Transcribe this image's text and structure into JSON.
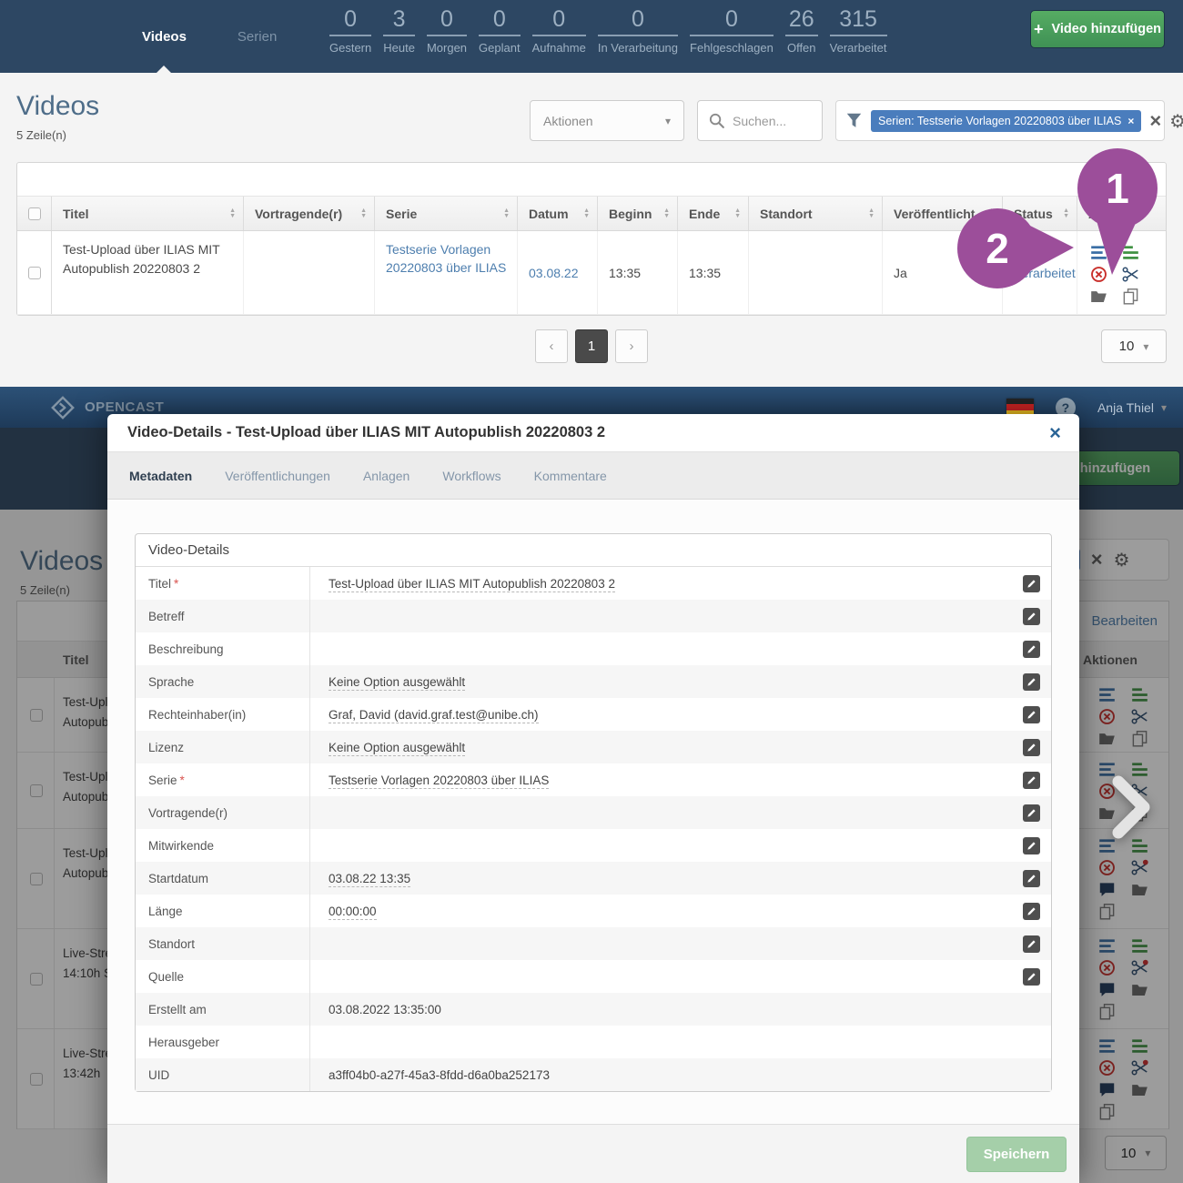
{
  "colors": {
    "navy_header": "#2d4763",
    "accent_blue_chip": "#4a7dbd",
    "link_blue": "#4d7eae",
    "add_button_green": "#4ba05e",
    "save_button_green": "#a5cfa9",
    "annotation_purple": "#9c4e9a",
    "delete_red": "#c9302c"
  },
  "glyphs": {
    "plus": "+",
    "close": "×",
    "gear": "⚙",
    "chevron_down": "▾",
    "prev": "‹",
    "next": "›",
    "help": "?",
    "tri_up": "▲",
    "tri_down": "▼"
  },
  "shot1": {
    "nav_tabs": [
      {
        "label": "Videos",
        "active": true
      },
      {
        "label": "Serien",
        "active": false
      }
    ],
    "stats": [
      {
        "value": "0",
        "label": "Gestern"
      },
      {
        "value": "3",
        "label": "Heute"
      },
      {
        "value": "0",
        "label": "Morgen"
      },
      {
        "value": "0",
        "label": "Geplant"
      },
      {
        "value": "0",
        "label": "Aufnahme"
      },
      {
        "value": "0",
        "label": "In Verarbeitung"
      },
      {
        "value": "0",
        "label": "Fehlgeschlagen"
      },
      {
        "value": "26",
        "label": "Offen"
      },
      {
        "value": "315",
        "label": "Verarbeitet"
      }
    ],
    "add_video_button": "Video hinzufügen",
    "page_title": "Videos",
    "row_count": "5 Zeile(n)",
    "actions_select": "Aktionen",
    "search_placeholder": "Suchen...",
    "filter_chip": "Serien: Testserie Vorlagen 20220803 über ILIAS",
    "table": {
      "columns": [
        {
          "label": "Titel",
          "sortable": true
        },
        {
          "label": "Vortragende(r)",
          "sortable": true
        },
        {
          "label": "Serie",
          "sortable": true
        },
        {
          "label": "Datum",
          "sortable": true
        },
        {
          "label": "Beginn",
          "sortable": true
        },
        {
          "label": "Ende",
          "sortable": true
        },
        {
          "label": "Standort",
          "sortable": true
        },
        {
          "label": "Veröffentlicht",
          "sortable": true
        },
        {
          "label": "Status",
          "sortable": true,
          "sort_active": true
        },
        {
          "label": "Aktionen",
          "sortable": false
        }
      ],
      "row": {
        "title": "Test-Upload über ILIAS MIT Autopublish 20220803 2",
        "presenters": "",
        "series": "Testserie Vorlagen 20220803 über ILIAS",
        "date": "03.08.22",
        "start": "13:35",
        "end": "13:35",
        "location": "",
        "published": "Ja",
        "status": "Verarbeitet",
        "action_icons": [
          "details-icon",
          "series-icon",
          "delete-icon",
          "cut-icon",
          "folder-icon",
          "copy-icon"
        ]
      }
    },
    "pagination": {
      "page": "1"
    },
    "per_page": "10",
    "annotations": [
      {
        "number": "1"
      },
      {
        "number": "2"
      }
    ]
  },
  "shot2": {
    "brand": "OPENCAST",
    "user_menu": "Anja Thiel",
    "add_video_button_partial": "eo hinzufügen",
    "background": {
      "page_title": "Videos",
      "row_count": "5 Zeile(n)",
      "filter_chip_partial": "AS",
      "edit_link": "Bearbeiten",
      "title_column": "Titel",
      "actions_column": "Aktionen",
      "per_page": "10",
      "rows": [
        {
          "line1": "Test-Upl",
          "line2": "Autopub",
          "action_icons": [
            "details-icon",
            "series-icon",
            "delete-icon",
            "cut-icon",
            "folder-icon",
            "copy-icon"
          ]
        },
        {
          "line1": "Test-Upl",
          "line2": "Autopub",
          "action_icons": [
            "details-icon",
            "series-icon",
            "delete-icon",
            "cut-icon",
            "folder-icon",
            "copy-icon"
          ]
        },
        {
          "line1": "Test-Upl",
          "line2": "Autopub",
          "action_icons": [
            "details-icon",
            "series-icon",
            "delete-icon",
            "cut-record-icon",
            "comment-icon",
            "folder-icon",
            "copy-icon"
          ]
        },
        {
          "line1": "Live-Stre",
          "line2": "14:10h S",
          "action_icons": [
            "details-icon",
            "series-icon",
            "delete-icon",
            "cut-record-icon",
            "comment-icon",
            "folder-icon",
            "copy-icon"
          ]
        },
        {
          "line1": "Live-Stre",
          "line2": "13:42h",
          "action_icons": [
            "details-icon",
            "series-icon",
            "delete-icon",
            "cut-record-icon",
            "comment-icon",
            "folder-icon",
            "copy-icon"
          ]
        }
      ]
    },
    "modal": {
      "title": "Video-Details - Test-Upload über ILIAS MIT Autopublish 20220803 2",
      "tabs": [
        {
          "label": "Metadaten",
          "active": true
        },
        {
          "label": "Veröffentlichungen",
          "truncated": true
        },
        {
          "label": "Anlagen"
        },
        {
          "label": "Workflows"
        },
        {
          "label": "Kommentare"
        }
      ],
      "panel_title": "Video-Details",
      "fields": [
        {
          "label": "Titel",
          "required_marker": "*",
          "required": true,
          "value": "Test-Upload über ILIAS MIT Autopublish 20220803 2",
          "editable": true
        },
        {
          "label": "Betreff",
          "value": "",
          "editable": true
        },
        {
          "label": "Beschreibung",
          "value": "",
          "editable": true
        },
        {
          "label": "Sprache",
          "value": "Keine Option ausgewählt",
          "editable": true
        },
        {
          "label": "Rechteinhaber(in)",
          "value": "Graf, David (david.graf.test@unibe.ch)",
          "editable": true
        },
        {
          "label": "Lizenz",
          "value": "Keine Option ausgewählt",
          "editable": true
        },
        {
          "label": "Serie",
          "required_marker": "*",
          "required": true,
          "value": "Testserie Vorlagen 20220803 über ILIAS",
          "editable": true
        },
        {
          "label": "Vortragende(r)",
          "value": "",
          "editable": true
        },
        {
          "label": "Mitwirkende",
          "value": "",
          "editable": true
        },
        {
          "label": "Startdatum",
          "value": "03.08.22 13:35",
          "editable": true
        },
        {
          "label": "Länge",
          "value": "00:00:00",
          "editable": true
        },
        {
          "label": "Standort",
          "value": "",
          "editable": true
        },
        {
          "label": "Quelle",
          "value": "",
          "editable": true
        },
        {
          "label": "Erstellt am",
          "value": "03.08.2022 13:35:00",
          "editable": false
        },
        {
          "label": "Herausgeber",
          "value": "",
          "editable": false
        },
        {
          "label": "UID",
          "value": "a3ff04b0-a27f-45a3-8fdd-d6a0ba252173",
          "editable": false
        }
      ],
      "save_button": "Speichern"
    }
  }
}
